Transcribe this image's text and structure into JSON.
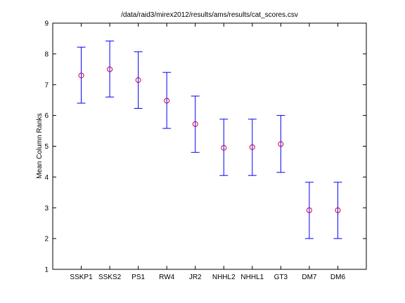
{
  "chart_data": {
    "type": "errorbar",
    "title": "/data/raid3/mirex2012/results/ams/results/cat_scores.csv",
    "xlabel": "",
    "ylabel": "Mean Column Ranks",
    "ylim": [
      1,
      9
    ],
    "yticks": [
      1,
      2,
      3,
      4,
      5,
      6,
      7,
      8,
      9
    ],
    "grid": false,
    "categories": [
      "SSKP1",
      "SSKS2",
      "PS1",
      "RW4",
      "JR2",
      "NHHL2",
      "NHHL1",
      "GT3",
      "DM7",
      "DM6"
    ],
    "series": [
      {
        "mean": [
          7.3,
          7.5,
          7.15,
          6.48,
          5.72,
          4.95,
          4.97,
          5.07,
          2.92,
          2.92
        ],
        "lower": [
          6.4,
          6.6,
          6.23,
          5.58,
          4.8,
          4.05,
          4.05,
          4.15,
          2.0,
          2.0
        ],
        "upper": [
          8.22,
          8.42,
          8.07,
          7.4,
          6.63,
          5.88,
          5.88,
          6.0,
          3.83,
          3.83
        ]
      }
    ],
    "colors": {
      "errorbar": "#0000ff",
      "marker": "#cc0044"
    }
  }
}
